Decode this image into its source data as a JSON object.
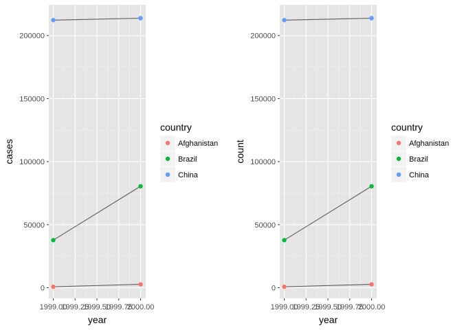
{
  "colors": {
    "panel_bg": "#e5e5e5",
    "grid_major": "#ffffff",
    "grid_minor": "#f2f2f2",
    "line": "#595959",
    "tick": "#333333",
    "legend_key_bg": "#f2f2f2"
  },
  "chart_data": [
    {
      "type": "line",
      "xlabel": "year",
      "ylabel": "cases",
      "xlim": [
        1999,
        2000
      ],
      "ylim": [
        0,
        213766
      ],
      "x_ticks": [
        1999.0,
        1999.25,
        1999.5,
        1999.75,
        2000.0
      ],
      "x_tick_labels": [
        "1999.00",
        "1999.25",
        "1999.50",
        "1999.75",
        "2000.00"
      ],
      "y_ticks": [
        0,
        50000,
        100000,
        150000,
        200000
      ],
      "y_tick_labels": [
        "0",
        "50000",
        "100000",
        "150000",
        "200000"
      ],
      "grid": true,
      "legend": {
        "title": "country",
        "position": "right"
      },
      "series": [
        {
          "name": "Afghanistan",
          "color": "#F8766D",
          "x": [
            1999,
            2000
          ],
          "y": [
            745,
            2666
          ]
        },
        {
          "name": "Brazil",
          "color": "#00BA38",
          "x": [
            1999,
            2000
          ],
          "y": [
            37737,
            80488
          ]
        },
        {
          "name": "China",
          "color": "#619CFF",
          "x": [
            1999,
            2000
          ],
          "y": [
            212258,
            213766
          ]
        }
      ]
    },
    {
      "type": "line",
      "xlabel": "year",
      "ylabel": "count",
      "xlim": [
        1999,
        2000
      ],
      "ylim": [
        0,
        213766
      ],
      "x_ticks": [
        1999.0,
        1999.25,
        1999.5,
        1999.75,
        2000.0
      ],
      "x_tick_labels": [
        "1999.00",
        "1999.25",
        "1999.50",
        "1999.75",
        "2000.00"
      ],
      "y_ticks": [
        0,
        50000,
        100000,
        150000,
        200000
      ],
      "y_tick_labels": [
        "0",
        "50000",
        "100000",
        "150000",
        "200000"
      ],
      "grid": true,
      "legend": {
        "title": "country",
        "position": "right"
      },
      "series": [
        {
          "name": "Afghanistan",
          "color": "#F8766D",
          "x": [
            1999,
            2000
          ],
          "y": [
            745,
            2666
          ]
        },
        {
          "name": "Brazil",
          "color": "#00BA38",
          "x": [
            1999,
            2000
          ],
          "y": [
            37737,
            80488
          ]
        },
        {
          "name": "China",
          "color": "#619CFF",
          "x": [
            1999,
            2000
          ],
          "y": [
            212258,
            213766
          ]
        }
      ]
    }
  ]
}
